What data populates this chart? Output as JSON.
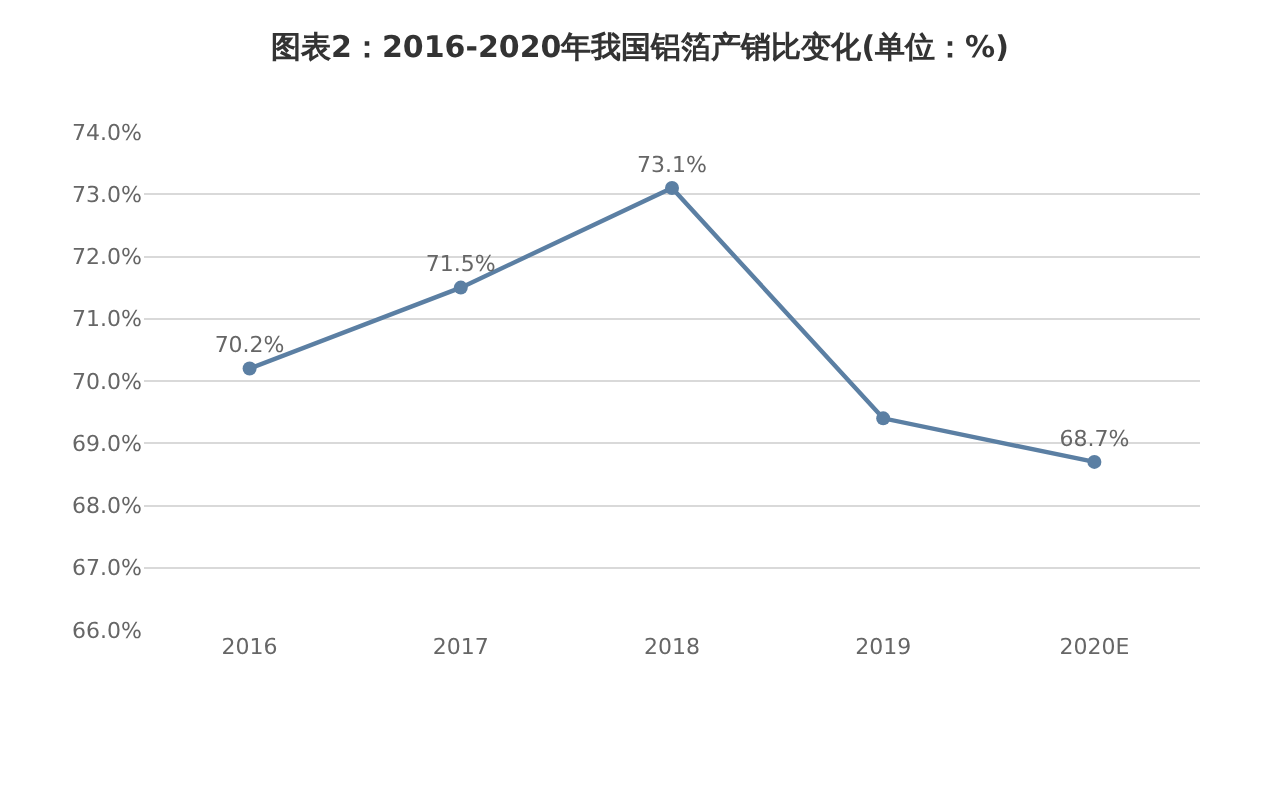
{
  "chart_data": {
    "type": "line",
    "title": "图表2：2016-2020年我国铝箔产销比变化(单位：%)",
    "categories": [
      "2016",
      "2017",
      "2018",
      "2019",
      "2020E"
    ],
    "values": [
      70.2,
      71.5,
      73.1,
      69.4,
      68.7
    ],
    "value_labels": [
      "70.2%",
      "71.5%",
      "73.1%",
      null,
      "68.7%"
    ],
    "color": "#5b7fa3",
    "marker": "circle",
    "ylim": [
      66,
      74
    ],
    "yticks": [
      {
        "value": 66,
        "label": "66.0%"
      },
      {
        "value": 67,
        "label": "67.0%"
      },
      {
        "value": 68,
        "label": "68.0%"
      },
      {
        "value": 69,
        "label": "69.0%"
      },
      {
        "value": 70,
        "label": "70.0%"
      },
      {
        "value": 71,
        "label": "71.0%"
      },
      {
        "value": 72,
        "label": "72.0%"
      },
      {
        "value": 73,
        "label": "73.0%"
      },
      {
        "value": 74,
        "label": "74.0%"
      }
    ],
    "grid": "y"
  }
}
